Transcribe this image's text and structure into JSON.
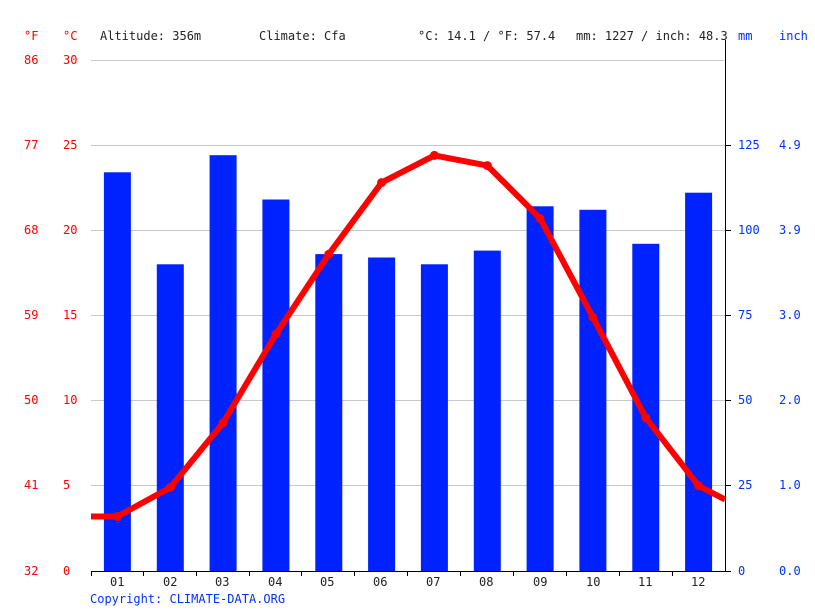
{
  "header": {
    "unit_f": "°F",
    "unit_c": "°C",
    "altitude": "Altitude: 356m",
    "climate": "Climate: Cfa",
    "temp_avg": "°C: 14.1 / °F: 57.4",
    "precip_total": "mm: 1227 / inch: 48.3",
    "unit_mm": "mm",
    "unit_inch": "inch"
  },
  "left_axis": {
    "fahrenheit": [
      "86",
      "77",
      "68",
      "59",
      "50",
      "41",
      "32"
    ],
    "celsius": [
      "30",
      "25",
      "20",
      "15",
      "10",
      "5",
      "0"
    ]
  },
  "right_axis": {
    "mm": [
      "125",
      "100",
      "75",
      "50",
      "25",
      "0"
    ],
    "inch": [
      "4.9",
      "3.9",
      "3.0",
      "2.0",
      "1.0",
      "0.0"
    ]
  },
  "footer": {
    "copyright": "Copyright: CLIMATE-DATA.ORG"
  },
  "colors": {
    "temperature": "#ff0000",
    "precipitation": "#0022ff",
    "grid": "#c8c8c8",
    "axis": "#000000"
  },
  "chart_data": {
    "type": "bar+line",
    "title": "Climate chart",
    "categories": [
      "01",
      "02",
      "03",
      "04",
      "05",
      "06",
      "07",
      "08",
      "09",
      "10",
      "11",
      "12"
    ],
    "series": [
      {
        "name": "Precipitation (mm)",
        "type": "bar",
        "axis": "right",
        "values": [
          117,
          90,
          122,
          109,
          93,
          92,
          90,
          94,
          107,
          106,
          96,
          111
        ]
      },
      {
        "name": "Temperature (°C)",
        "type": "line",
        "axis": "left",
        "values": [
          3.2,
          4.9,
          8.7,
          13.9,
          18.6,
          22.8,
          24.4,
          23.8,
          20.7,
          14.9,
          9.0,
          5.0
        ]
      }
    ],
    "xlabel": "",
    "ylabel_left": "°C / °F",
    "ylabel_right": "mm / inch",
    "ylim_left_c": [
      0,
      30
    ],
    "ylim_left_f": [
      32,
      86
    ],
    "ylim_right_mm": [
      0,
      150
    ],
    "grid": true,
    "annotations": [
      "Altitude: 356m",
      "Climate: Cfa",
      "°C: 14.1 / °F: 57.4",
      "mm: 1227 / inch: 48.3"
    ]
  }
}
